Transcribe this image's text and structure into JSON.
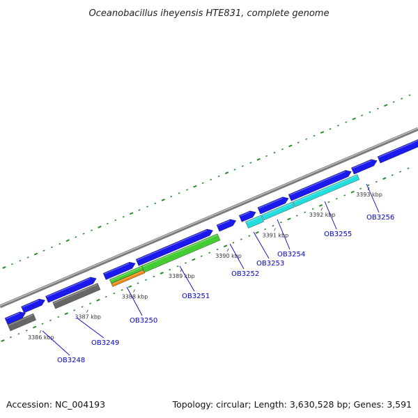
{
  "title": "Oceanobacillus iheyensis HTE831, complete genome",
  "footer": {
    "accession": "Accession: NC_004193",
    "summary": "Topology: circular; Length: 3,630,528 bp; Genes: 3,591"
  },
  "scale_labels": [
    "3386 kbp",
    "3387 kbp",
    "3388 kbp",
    "3389 kbp",
    "3390 kbp",
    "3391 kbp",
    "3392 kbp",
    "3393 kbp"
  ],
  "genes": [
    "OB3248",
    "OB3249",
    "OB3250",
    "OB3251",
    "OB3252",
    "OB3253",
    "OB3254",
    "OB3255",
    "OB3256"
  ],
  "colors": {
    "backbone": "#8c8c8c",
    "forward_cds": "#1a1aee",
    "reverse_cds_gray": "#666666",
    "green_feature": "#44cc33",
    "orange_feature": "#ee8811",
    "cyan_feature": "#22dddd",
    "gc_dots": "#2a8a2a",
    "label_blue": "#0000cc"
  }
}
